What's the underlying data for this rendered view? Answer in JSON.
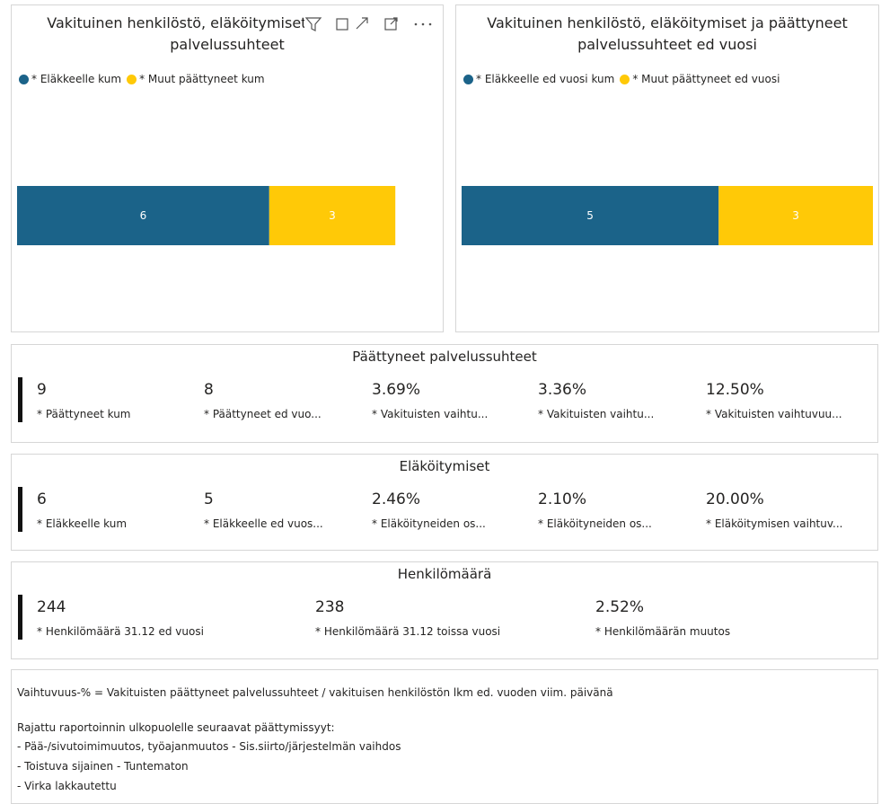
{
  "chart_data": [
    {
      "type": "bar",
      "orientation": "horizontal",
      "stacked": true,
      "title": "Vakituinen henkilöstö, eläköitymiset ja päättyneet palvelussuhteet",
      "categories": [
        null
      ],
      "series": [
        {
          "name": "* Eläkkeelle kum",
          "color": "#1b6389",
          "values": [
            6
          ]
        },
        {
          "name": "* Muut päättyneet kum",
          "color": "#ffc907",
          "values": [
            3
          ]
        }
      ],
      "xlim": [
        0,
        10
      ]
    },
    {
      "type": "bar",
      "orientation": "horizontal",
      "stacked": true,
      "title": "Vakituinen henkilöstö, eläköitymiset ja päättyneet palvelussuhteet ed vuosi",
      "categories": [
        null
      ],
      "series": [
        {
          "name": "* Eläkkeelle ed vuosi kum",
          "color": "#1b6389",
          "values": [
            5
          ]
        },
        {
          "name": "* Muut päättyneet ed vuosi",
          "color": "#ffc907",
          "values": [
            3
          ]
        }
      ],
      "xlim": [
        0,
        8
      ]
    }
  ],
  "cards": [
    {
      "title": "Päättyneet palvelussuhteet",
      "items": [
        {
          "value": "9",
          "label": "* Päättyneet kum"
        },
        {
          "value": "8",
          "label": "* Päättyneet ed vuo..."
        },
        {
          "value": "3.69%",
          "label": "* Vakituisten vaihtu..."
        },
        {
          "value": "3.36%",
          "label": "* Vakituisten vaihtu..."
        },
        {
          "value": "12.50%",
          "label": "* Vakituisten vaihtuvuu..."
        }
      ]
    },
    {
      "title": "Eläköitymiset",
      "items": [
        {
          "value": "6",
          "label": "* Eläkkeelle kum"
        },
        {
          "value": "5",
          "label": "* Eläkkeelle ed vuos..."
        },
        {
          "value": "2.46%",
          "label": "* Eläköityneiden os..."
        },
        {
          "value": "2.10%",
          "label": "* Eläköityneiden os..."
        },
        {
          "value": "20.00%",
          "label": "* Eläköitymisen vaihtuv..."
        }
      ]
    },
    {
      "title": "Henkilömäärä",
      "items": [
        {
          "value": "244",
          "label": "* Henkilömäärä 31.12 ed vuosi"
        },
        {
          "value": "238",
          "label": "* Henkilömäärä 31.12 toissa vuosi"
        },
        {
          "value": "2.52%",
          "label": "* Henkilömäärän muutos"
        }
      ]
    }
  ],
  "note": {
    "lines": [
      "Vaihtuvuus-% = Vakituisten päättyneet palvelussuhteet / vakituisen henkilöstön lkm ed. vuoden viim. päivänä",
      "Rajattu raportoinnin ulkopuolelle seuraavat päättymissyyt:",
      "- Pää-/sivutoimimuutos, työajanmuutos - Sis.siirto/järjestelmän vaihdos",
      "- Toistuva sijainen - Tuntematon",
      "- Virka lakkautettu"
    ]
  }
}
